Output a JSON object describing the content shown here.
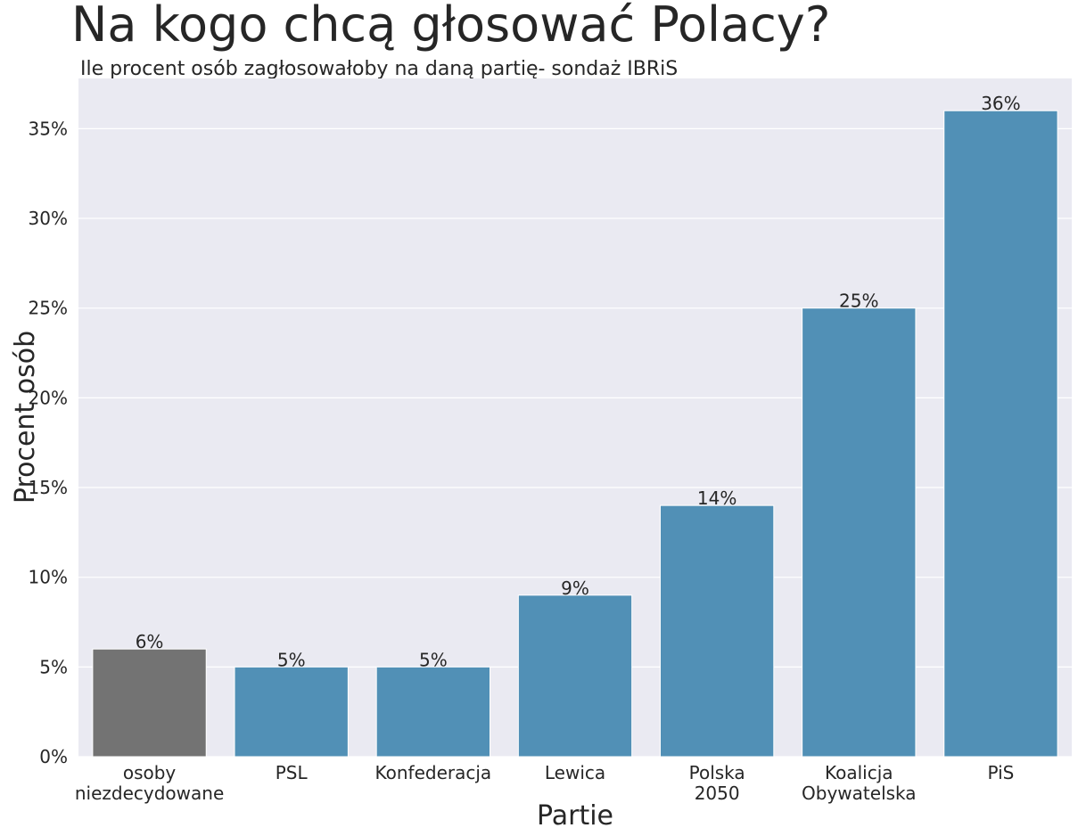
{
  "chart_data": {
    "type": "bar",
    "title": "Na kogo chcą głosować Polacy?",
    "subtitle": "Ile procent osób zagłosowałoby na daną partię- sondaż IBRiS",
    "xlabel": "Partie",
    "ylabel": "Procent osób",
    "categories": [
      [
        "osoby",
        "niezdecydowane"
      ],
      [
        "PSL"
      ],
      [
        "Konfederacja"
      ],
      [
        "Lewica"
      ],
      [
        "Polska",
        "2050"
      ],
      [
        "Koalicja",
        "Obywatelska"
      ],
      [
        "PiS"
      ]
    ],
    "values": [
      6,
      5,
      5,
      9,
      14,
      25,
      36
    ],
    "value_labels": [
      "6%",
      "5%",
      "5%",
      "9%",
      "14%",
      "25%",
      "36%"
    ],
    "bar_colors": [
      "#737373",
      "#5190b6",
      "#5190b6",
      "#5190b6",
      "#5190b6",
      "#5190b6",
      "#5190b6"
    ],
    "ylim": [
      0,
      37.8
    ],
    "yticks": [
      0,
      5,
      10,
      15,
      20,
      25,
      30,
      35
    ],
    "ytick_labels": [
      "0%",
      "5%",
      "10%",
      "15%",
      "20%",
      "25%",
      "30%",
      "35%"
    ],
    "grid": true,
    "background_color": "#eaeaf2",
    "grid_color": "#ffffff"
  }
}
